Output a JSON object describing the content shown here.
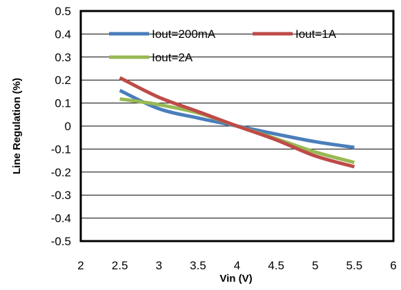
{
  "chart_data": {
    "type": "line",
    "title": "",
    "xlabel": "Vin (V)",
    "ylabel": "Line Regulation (%)",
    "xlim": [
      2,
      6
    ],
    "ylim": [
      -0.5,
      0.5
    ],
    "xticks": [
      2,
      2.5,
      3,
      3.5,
      4,
      4.5,
      5,
      5.5,
      6
    ],
    "yticks": [
      0.5,
      0.4,
      0.3,
      0.2,
      0.1,
      0,
      -0.1,
      -0.2,
      -0.3,
      -0.4,
      -0.5
    ],
    "xtick_labels": [
      "2",
      "2.5",
      "3",
      "3.5",
      "4",
      "4.5",
      "5",
      "5.5",
      "6"
    ],
    "ytick_labels": [
      "0.5",
      "0.4",
      "0.3",
      "0.2",
      "0.1",
      "0",
      "-0.1",
      "-0.2",
      "-0.3",
      "-0.4",
      "-0.5"
    ],
    "grid": true,
    "legend_position": "top",
    "series": [
      {
        "name": "Iout=200mA",
        "color": "#4a7ebb",
        "x": [
          2.5,
          3.0,
          3.5,
          4.0,
          4.5,
          5.0,
          5.5
        ],
        "y": [
          0.155,
          0.075,
          0.035,
          0.0,
          -0.035,
          -0.068,
          -0.093
        ]
      },
      {
        "name": "Iout=1A",
        "color": "#be4b48",
        "x": [
          2.5,
          3.0,
          3.5,
          4.0,
          4.5,
          5.0,
          5.5
        ],
        "y": [
          0.21,
          0.125,
          0.063,
          0.0,
          -0.06,
          -0.13,
          -0.177
        ]
      },
      {
        "name": "Iout=2A",
        "color": "#98b954",
        "x": [
          2.5,
          3.0,
          3.5,
          4.0,
          4.5,
          5.0,
          5.5
        ],
        "y": [
          0.118,
          0.093,
          0.057,
          0.0,
          -0.055,
          -0.113,
          -0.158
        ]
      }
    ]
  }
}
